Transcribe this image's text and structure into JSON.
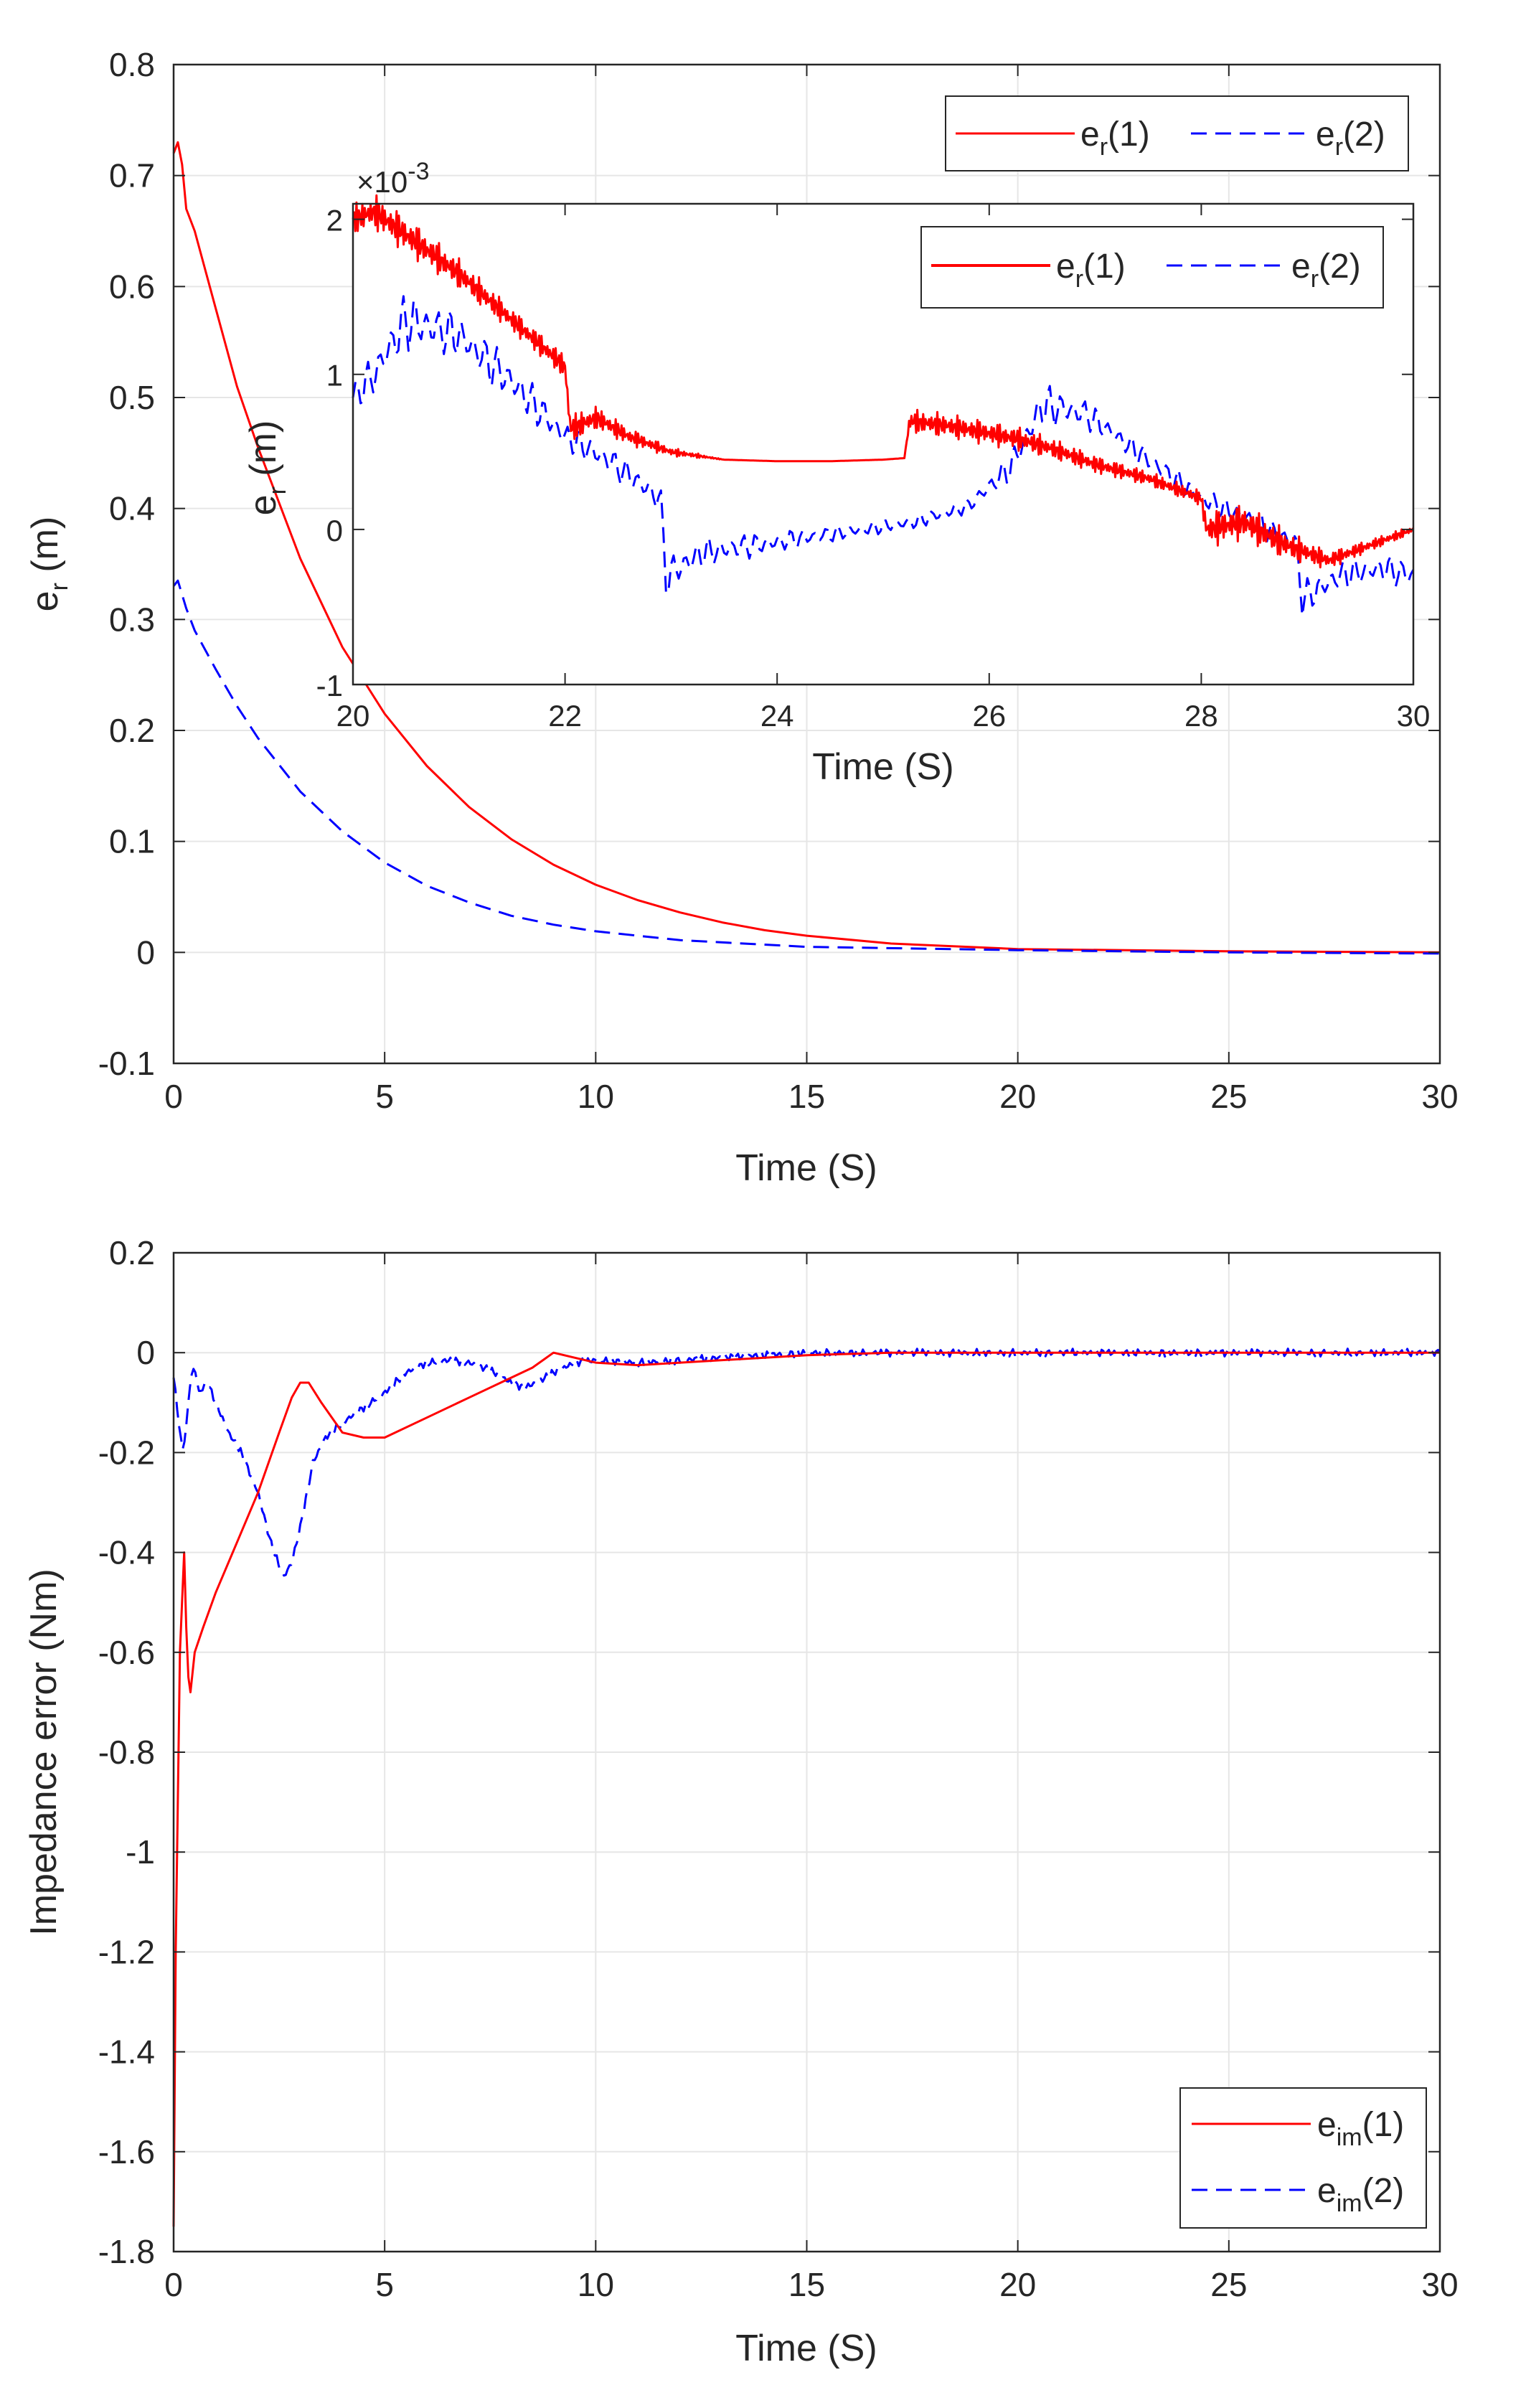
{
  "colors": {
    "series1": "#ff0000",
    "series2": "#0000ff",
    "axis": "#262626",
    "grid": "#e6e6e6",
    "background": "#ffffff"
  },
  "chart_data": [
    {
      "id": "top",
      "type": "line",
      "title": "",
      "xlabel": "Time (S)",
      "ylabel": {
        "base": "e",
        "sub": "r",
        "suffix": " (m)"
      },
      "xlim": [
        0,
        30
      ],
      "ylim": [
        -0.1,
        0.8
      ],
      "xticks": [
        "0",
        "5",
        "10",
        "15",
        "20",
        "25",
        "30"
      ],
      "yticks": [
        "0.8",
        "0.7",
        "0.6",
        "0.5",
        "0.4",
        "0.3",
        "0.2",
        "0.1",
        "0",
        "-0.1"
      ],
      "grid": true,
      "legend_position": "top-right",
      "legend_orientation": "horizontal",
      "series": [
        {
          "name": "e_r(1)",
          "legend": {
            "base": "e",
            "sub": "r",
            "suffix": "(1)"
          },
          "style": "solid",
          "color": "#ff0000",
          "x": [
            0,
            0.1,
            0.2,
            0.3,
            0.5,
            1,
            1.5,
            2,
            3,
            4,
            5,
            6,
            7,
            8,
            9,
            10,
            11,
            12,
            13,
            14,
            15,
            17,
            20,
            25,
            30
          ],
          "y": [
            0.72,
            0.73,
            0.71,
            0.67,
            0.65,
            0.58,
            0.51,
            0.455,
            0.355,
            0.275,
            0.215,
            0.168,
            0.131,
            0.102,
            0.079,
            0.061,
            0.047,
            0.036,
            0.027,
            0.02,
            0.015,
            0.008,
            0.003,
            0.001,
            0.0
          ]
        },
        {
          "name": "e_r(2)",
          "legend": {
            "base": "e",
            "sub": "r",
            "suffix": "(2)"
          },
          "style": "dashed",
          "color": "#0000ff",
          "x": [
            0,
            0.1,
            0.3,
            0.5,
            1,
            1.5,
            2,
            3,
            4,
            5,
            6,
            7,
            8,
            9,
            10,
            12,
            15,
            20,
            25,
            30
          ],
          "y": [
            0.33,
            0.335,
            0.31,
            0.29,
            0.255,
            0.222,
            0.193,
            0.145,
            0.109,
            0.081,
            0.06,
            0.045,
            0.033,
            0.025,
            0.019,
            0.011,
            0.005,
            0.002,
            0.0,
            -0.001
          ]
        }
      ],
      "inset": {
        "xlabel": "Time (S)",
        "ylabel": {
          "base": "e",
          "sub": "r",
          "suffix": " (m)"
        },
        "multiplier": {
          "prefix": "×10",
          "exp": "-3"
        },
        "xlim": [
          20,
          30
        ],
        "ylim": [
          -1,
          2.1
        ],
        "xticks": [
          "20",
          "22",
          "24",
          "26",
          "28",
          "30"
        ],
        "yticks": [
          "2",
          "1",
          "0",
          "-1"
        ],
        "legend_position": "top-right",
        "series": [
          {
            "name": "e_r(1)",
            "legend": {
              "base": "e",
              "sub": "r",
              "suffix": "(1)"
            },
            "style": "solid",
            "color": "#ff0000",
            "x": [
              20,
              20.2,
              20.5,
              21,
              21.5,
              22,
              22.05,
              22.3,
              22.6,
              23,
              23.5,
              24,
              24.5,
              25,
              25.2,
              25.25,
              25.6,
              26,
              26.3,
              26.6,
              27,
              27.5,
              28,
              28.05,
              28.4,
              28.8,
              29.2,
              29.6,
              30
            ],
            "y": [
              2.0,
              2.05,
              1.9,
              1.65,
              1.35,
              1.05,
              0.65,
              0.72,
              0.6,
              0.5,
              0.45,
              0.44,
              0.44,
              0.45,
              0.46,
              0.7,
              0.67,
              0.62,
              0.58,
              0.52,
              0.42,
              0.33,
              0.2,
              0.0,
              0.05,
              -0.1,
              -0.2,
              -0.1,
              0.0
            ],
            "wiggle": [
              0.1,
              0.12,
              0.12,
              0.1,
              0.08,
              0.08,
              0.1,
              0.08,
              0.06,
              0.03,
              0.0,
              0.0,
              0.0,
              0.0,
              0.0,
              0.08,
              0.08,
              0.08,
              0.08,
              0.07,
              0.06,
              0.05,
              0.05,
              0.12,
              0.12,
              0.1,
              0.06,
              0.04,
              0.03
            ]
          },
          {
            "name": "e_r(2)",
            "legend": {
              "base": "e",
              "sub": "r",
              "suffix": "(2)"
            },
            "style": "dashed",
            "color": "#0000ff",
            "x": [
              20,
              20.2,
              20.5,
              21,
              21.5,
              22,
              22.4,
              22.9,
              22.95,
              23.3,
              23.8,
              24.3,
              24.8,
              25.3,
              25.8,
              26.2,
              26.5,
              26.9,
              27.2,
              27.6,
              28,
              28.5,
              28.9,
              28.95,
              29.3,
              29.7,
              30
            ],
            "y": [
              0.85,
              1.0,
              1.35,
              1.25,
              0.95,
              0.6,
              0.45,
              0.2,
              -0.3,
              -0.15,
              -0.1,
              -0.05,
              0.0,
              0.05,
              0.15,
              0.4,
              0.8,
              0.75,
              0.6,
              0.4,
              0.2,
              0.05,
              -0.1,
              -0.45,
              -0.3,
              -0.25,
              -0.3
            ],
            "wiggle": [
              0.1,
              0.15,
              0.2,
              0.15,
              0.15,
              0.1,
              0.1,
              0.1,
              0.15,
              0.1,
              0.08,
              0.06,
              0.05,
              0.05,
              0.05,
              0.1,
              0.15,
              0.1,
              0.08,
              0.08,
              0.08,
              0.08,
              0.1,
              0.12,
              0.1,
              0.1,
              0.1
            ]
          }
        ]
      }
    },
    {
      "id": "bottom",
      "type": "line",
      "title": "",
      "xlabel": "Time (S)",
      "ylabel": "Impedance error (Nm)",
      "xlim": [
        0,
        30
      ],
      "ylim": [
        -1.8,
        0.2
      ],
      "xticks": [
        "0",
        "5",
        "10",
        "15",
        "20",
        "25",
        "30"
      ],
      "yticks": [
        "0.2",
        "0",
        "-0.2",
        "-0.4",
        "-0.6",
        "-0.8",
        "-1",
        "-1.2",
        "-1.4",
        "-1.6",
        "-1.8"
      ],
      "grid": true,
      "legend_position": "bottom-right",
      "legend_orientation": "vertical",
      "series": [
        {
          "name": "e_im(1)",
          "legend": {
            "base": "e",
            "sub": "im",
            "suffix": "(1)"
          },
          "style": "solid",
          "color": "#ff0000",
          "x": [
            0,
            0.05,
            0.15,
            0.25,
            0.3,
            0.35,
            0.4,
            0.5,
            0.7,
            1,
            1.5,
            2,
            2.5,
            2.8,
            3,
            3.2,
            3.5,
            4,
            4.5,
            5,
            6,
            7,
            8,
            8.5,
            9,
            9.5,
            10,
            11,
            12,
            13,
            14,
            15,
            17,
            20,
            25,
            30
          ],
          "y": [
            -1.75,
            -1.2,
            -0.6,
            -0.4,
            -0.55,
            -0.65,
            -0.68,
            -0.6,
            -0.55,
            -0.48,
            -0.38,
            -0.28,
            -0.16,
            -0.09,
            -0.06,
            -0.06,
            -0.1,
            -0.16,
            -0.17,
            -0.17,
            -0.13,
            -0.09,
            -0.05,
            -0.03,
            0.0,
            -0.01,
            -0.02,
            -0.025,
            -0.02,
            -0.015,
            -0.01,
            -0.005,
            0.0,
            0.0,
            0.0,
            0.0
          ]
        },
        {
          "name": "e_im(2)",
          "legend": {
            "base": "e",
            "sub": "im",
            "suffix": "(2)"
          },
          "style": "dashed",
          "color": "#0000ff",
          "x": [
            0,
            0.1,
            0.2,
            0.3,
            0.4,
            0.5,
            0.6,
            0.8,
            1,
            1.3,
            1.6,
            2,
            2.3,
            2.6,
            2.8,
            3,
            3.3,
            3.6,
            4,
            4.5,
            5,
            5.5,
            6,
            6.5,
            7,
            7.5,
            8,
            8.3,
            8.6,
            9,
            9.5,
            10,
            11,
            12,
            13,
            14,
            15,
            17,
            20,
            25,
            30
          ],
          "y": [
            -0.05,
            -0.12,
            -0.2,
            -0.15,
            -0.05,
            -0.03,
            -0.08,
            -0.06,
            -0.1,
            -0.16,
            -0.2,
            -0.28,
            -0.38,
            -0.45,
            -0.42,
            -0.35,
            -0.22,
            -0.17,
            -0.14,
            -0.11,
            -0.08,
            -0.04,
            -0.02,
            -0.015,
            -0.02,
            -0.035,
            -0.06,
            -0.07,
            -0.06,
            -0.04,
            -0.02,
            -0.015,
            -0.02,
            -0.015,
            -0.01,
            -0.005,
            0.0,
            0.0,
            0.0,
            0.0,
            0.0
          ],
          "wiggle": 0.008
        }
      ]
    }
  ]
}
